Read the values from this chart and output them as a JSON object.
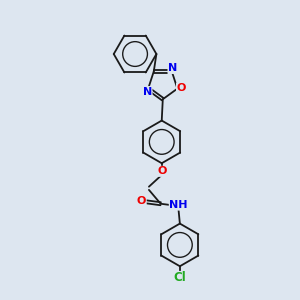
{
  "background_color": "#dde6f0",
  "bond_color": "#1a1a1a",
  "atom_colors": {
    "N": "#0000ee",
    "O": "#ee0000",
    "Cl": "#22aa22",
    "C": "#1a1a1a"
  },
  "figsize": [
    3.0,
    3.0
  ],
  "dpi": 100
}
